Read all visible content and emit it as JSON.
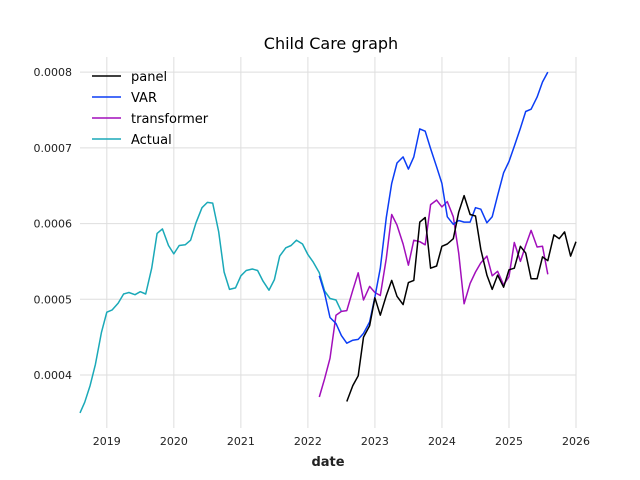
{
  "chart_data": {
    "type": "line",
    "title": "Child Care graph",
    "xlabel": "date",
    "ylabel": "",
    "xlim": [
      2018.6,
      2026.0
    ],
    "ylim": [
      0.00033,
      0.00082
    ],
    "x_ticks": [
      2019,
      2020,
      2021,
      2022,
      2023,
      2024,
      2025,
      2026
    ],
    "y_ticks": [
      0.0004,
      0.0005,
      0.0006,
      0.0007,
      0.0008
    ],
    "y_tick_labels": [
      "0.0004",
      "0.0005",
      "0.0006",
      "0.0007",
      "0.0008"
    ],
    "grid": true,
    "legend_position": "top-left",
    "series": [
      {
        "name": "panel",
        "color": "#000000",
        "x": [
          2022.58,
          2022.67,
          2022.75,
          2022.83,
          2022.92,
          2023.0,
          2023.08,
          2023.17,
          2023.25,
          2023.33,
          2023.42,
          2023.5,
          2023.58,
          2023.67,
          2023.75,
          2023.83,
          2023.92,
          2024.0,
          2024.08,
          2024.17,
          2024.25,
          2024.33,
          2024.42,
          2024.5,
          2024.58,
          2024.67,
          2024.75,
          2024.83,
          2024.92,
          2025.0,
          2025.08,
          2025.17,
          2025.25,
          2025.33,
          2025.42,
          2025.5,
          2025.58,
          2025.67,
          2025.75,
          2025.83,
          2025.92,
          2026.0
        ],
        "y": [
          0.000365,
          0.000386,
          0.000399,
          0.00045,
          0.000465,
          0.000502,
          0.000479,
          0.000505,
          0.000525,
          0.000504,
          0.000493,
          0.000522,
          0.000525,
          0.000602,
          0.000608,
          0.000541,
          0.000544,
          0.00057,
          0.000573,
          0.00058,
          0.000615,
          0.000637,
          0.000612,
          0.00061,
          0.000566,
          0.000532,
          0.000513,
          0.000532,
          0.000516,
          0.000539,
          0.000541,
          0.00057,
          0.000561,
          0.000527,
          0.000527,
          0.000556,
          0.000551,
          0.000585,
          0.00058,
          0.000589,
          0.000557,
          0.000576
        ]
      },
      {
        "name": "VAR",
        "color": "#0b3df5",
        "x": [
          2022.17,
          2022.25,
          2022.33,
          2022.42,
          2022.5,
          2022.58,
          2022.67,
          2022.75,
          2022.83,
          2022.92,
          2023.0,
          2023.08,
          2023.17,
          2023.25,
          2023.33,
          2023.42,
          2023.5,
          2023.58,
          2023.67,
          2023.75,
          2023.83,
          2023.92,
          2024.0,
          2024.08,
          2024.17,
          2024.25,
          2024.33,
          2024.42,
          2024.5,
          2024.58,
          2024.67,
          2024.75,
          2024.83,
          2024.92,
          2025.0,
          2025.08,
          2025.17,
          2025.25,
          2025.33,
          2025.42,
          2025.5,
          2025.58
        ],
        "y": [
          0.000531,
          0.000508,
          0.000476,
          0.000468,
          0.000452,
          0.000442,
          0.000446,
          0.000447,
          0.000455,
          0.00047,
          0.000503,
          0.000541,
          0.000608,
          0.000653,
          0.00068,
          0.000688,
          0.000672,
          0.000688,
          0.000725,
          0.000722,
          0.000699,
          0.000675,
          0.000653,
          0.000609,
          0.000599,
          0.000604,
          0.000602,
          0.000602,
          0.000621,
          0.000619,
          0.000601,
          0.000609,
          0.000637,
          0.000667,
          0.000682,
          0.000702,
          0.000726,
          0.000748,
          0.000751,
          0.000767,
          0.000787,
          0.0008
        ]
      },
      {
        "name": "transformer",
        "color": "#a20fbb",
        "x": [
          2022.17,
          2022.25,
          2022.33,
          2022.42,
          2022.5,
          2022.58,
          2022.67,
          2022.75,
          2022.83,
          2022.92,
          2023.0,
          2023.08,
          2023.17,
          2023.25,
          2023.33,
          2023.42,
          2023.5,
          2023.58,
          2023.67,
          2023.75,
          2023.83,
          2023.92,
          2024.0,
          2024.08,
          2024.17,
          2024.25,
          2024.33,
          2024.42,
          2024.5,
          2024.58,
          2024.67,
          2024.75,
          2024.83,
          2024.92,
          2025.0,
          2025.08,
          2025.17,
          2025.25,
          2025.33,
          2025.42,
          2025.5,
          2025.58
        ],
        "y": [
          0.000371,
          0.000395,
          0.000422,
          0.000479,
          0.000484,
          0.000485,
          0.000512,
          0.000535,
          0.000499,
          0.000517,
          0.000509,
          0.000505,
          0.000554,
          0.000612,
          0.000598,
          0.000573,
          0.000545,
          0.000578,
          0.000576,
          0.000572,
          0.000625,
          0.000631,
          0.000622,
          0.000629,
          0.000609,
          0.000561,
          0.000494,
          0.000521,
          0.000536,
          0.000548,
          0.000557,
          0.000531,
          0.000537,
          0.000519,
          0.00053,
          0.000575,
          0.00055,
          0.000571,
          0.000591,
          0.000569,
          0.00057,
          0.000533
        ]
      },
      {
        "name": "Actual",
        "color": "#1aa9b8",
        "x": [
          2018.6,
          2018.67,
          2018.75,
          2018.83,
          2018.92,
          2019.0,
          2019.08,
          2019.17,
          2019.25,
          2019.33,
          2019.42,
          2019.5,
          2019.58,
          2019.67,
          2019.75,
          2019.83,
          2019.92,
          2020.0,
          2020.08,
          2020.17,
          2020.25,
          2020.33,
          2020.42,
          2020.5,
          2020.58,
          2020.67,
          2020.75,
          2020.83,
          2020.92,
          2021.0,
          2021.08,
          2021.17,
          2021.25,
          2021.33,
          2021.42,
          2021.5,
          2021.58,
          2021.67,
          2021.75,
          2021.83,
          2021.92,
          2022.0,
          2022.08,
          2022.17,
          2022.25,
          2022.33,
          2022.42,
          2022.5
        ],
        "y": [
          0.00035,
          0.000364,
          0.000386,
          0.000414,
          0.000456,
          0.000483,
          0.000486,
          0.000495,
          0.000507,
          0.000509,
          0.000506,
          0.00051,
          0.000507,
          0.000541,
          0.000587,
          0.000593,
          0.000571,
          0.00056,
          0.000571,
          0.000572,
          0.000578,
          0.000601,
          0.000621,
          0.000628,
          0.000627,
          0.000589,
          0.000536,
          0.000513,
          0.000515,
          0.000531,
          0.000538,
          0.00054,
          0.000538,
          0.000524,
          0.000512,
          0.000526,
          0.000557,
          0.000568,
          0.000571,
          0.000578,
          0.000573,
          0.000559,
          0.000549,
          0.000535,
          0.000511,
          0.000501,
          0.000499,
          0.000484
        ]
      }
    ]
  }
}
